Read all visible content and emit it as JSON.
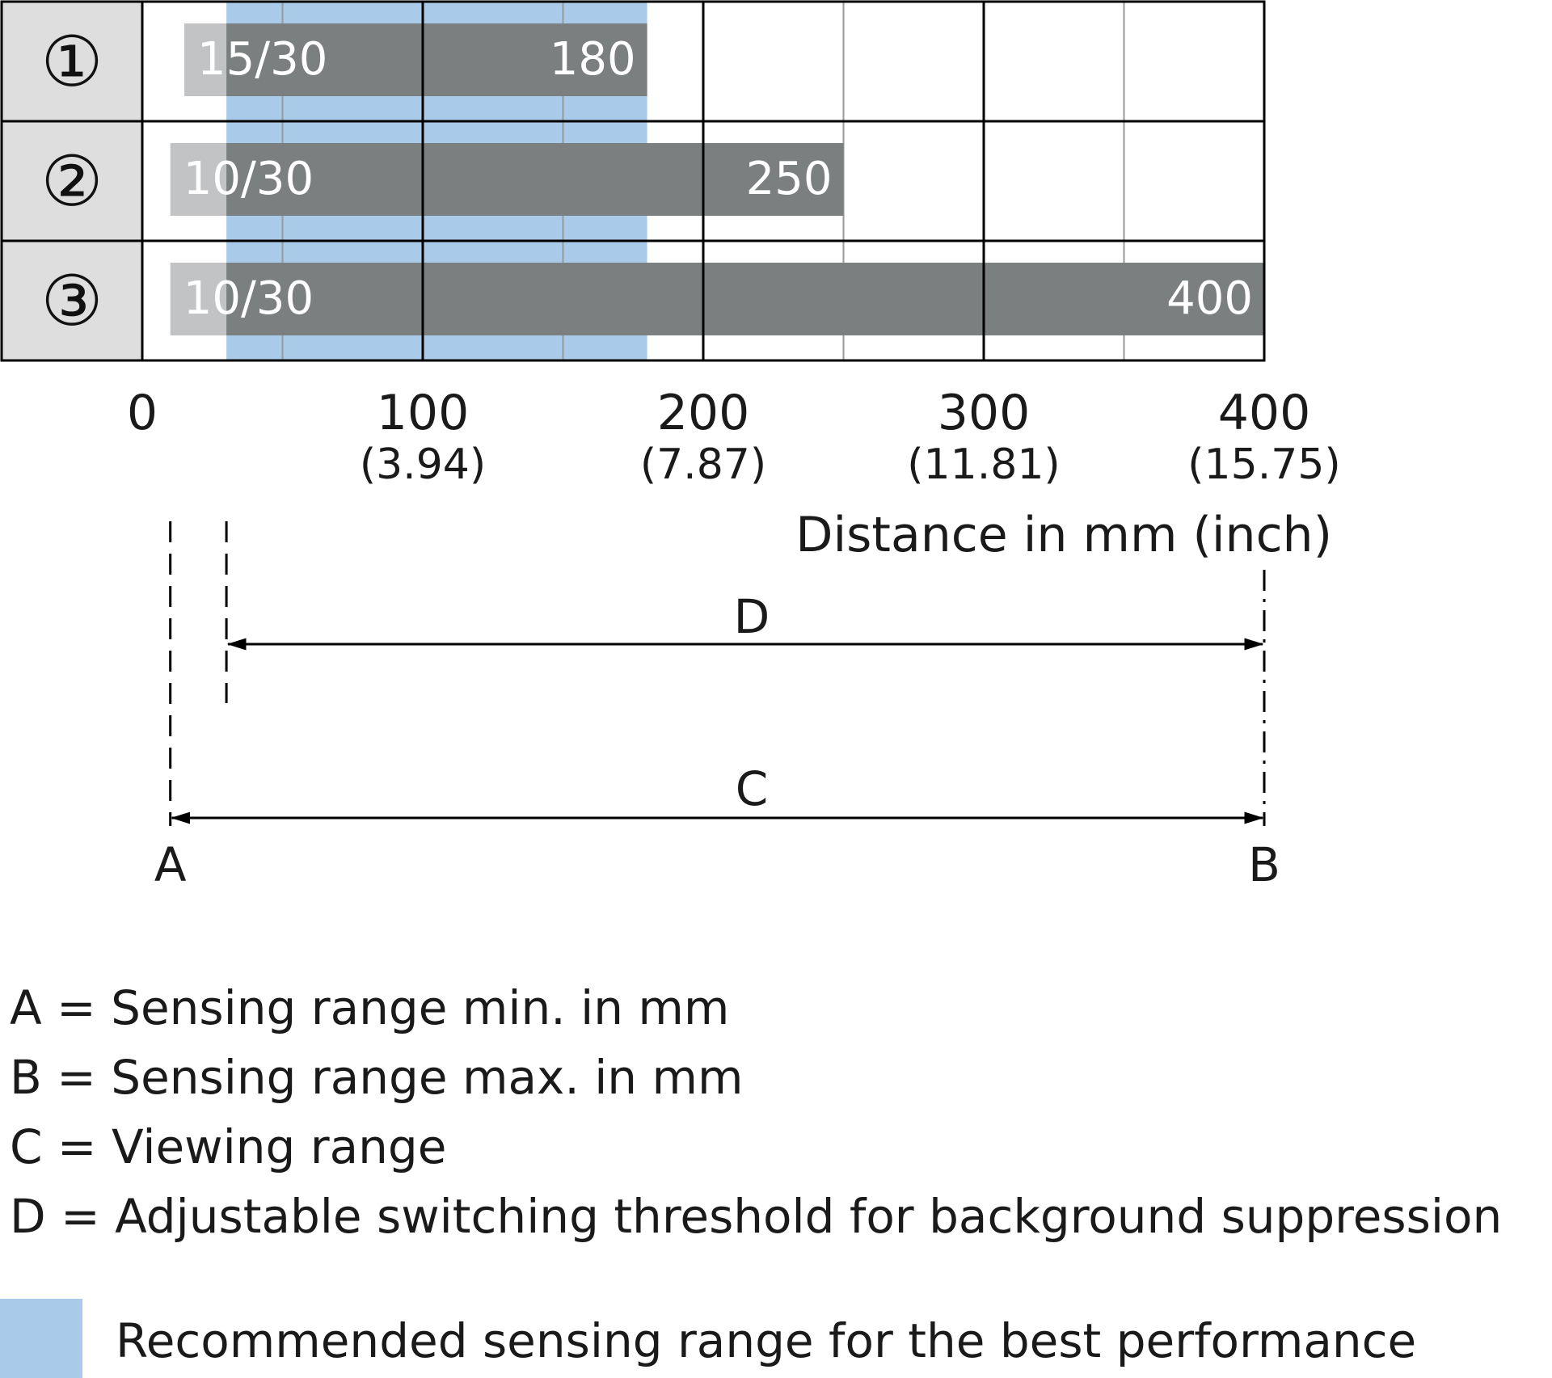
{
  "chart_data": {
    "type": "bar",
    "title": "",
    "xlabel": "Distance in mm (inch)",
    "ylabel": "",
    "xlim": [
      0,
      400
    ],
    "x_ticks": [
      {
        "value": 0,
        "label": "0",
        "sub": ""
      },
      {
        "value": 100,
        "label": "100",
        "sub": "(3.94)"
      },
      {
        "value": 200,
        "label": "200",
        "sub": "(7.87)"
      },
      {
        "value": 300,
        "label": "300",
        "sub": "(11.81)"
      },
      {
        "value": 400,
        "label": "400",
        "sub": "(15.75)"
      }
    ],
    "grid": true,
    "minor_gridlines": [
      50,
      150,
      250,
      350
    ],
    "rows": [
      {
        "id": "①",
        "min_label": "15/30",
        "max_label": "180",
        "light_start": 15,
        "dark_start": 30,
        "end": 180
      },
      {
        "id": "②",
        "min_label": "10/30",
        "max_label": "250",
        "light_start": 10,
        "dark_start": 30,
        "end": 250
      },
      {
        "id": "③",
        "min_label": "10/30",
        "max_label": "400",
        "light_start": 10,
        "dark_start": 30,
        "end": 400
      }
    ],
    "recommended_range": [
      30,
      180
    ],
    "dimensions": [
      {
        "label": "D",
        "from": 30,
        "to": 400
      },
      {
        "label": "C",
        "from": 10,
        "to": 400
      }
    ],
    "points": [
      {
        "label": "A",
        "value": 10
      },
      {
        "label": "B",
        "value": 400
      }
    ],
    "colors": {
      "bar": "#7c7f80",
      "bar_light": "#c1c3c4",
      "recommended": "#a9cbe9",
      "row_header": "#dedede",
      "bar_text": "#ffffff",
      "grid": "#000000",
      "minor_grid": "#9a9a9a"
    }
  },
  "legend": [
    {
      "key": "A",
      "text": "A = Sensing range min. in mm"
    },
    {
      "key": "B",
      "text": "B = Sensing range max. in mm"
    },
    {
      "key": "C",
      "text": "C = Viewing range"
    },
    {
      "key": "D",
      "text": "D = Adjustable switching threshold for background suppression"
    }
  ],
  "recommended_note": "Recommended sensing range for the best performance"
}
